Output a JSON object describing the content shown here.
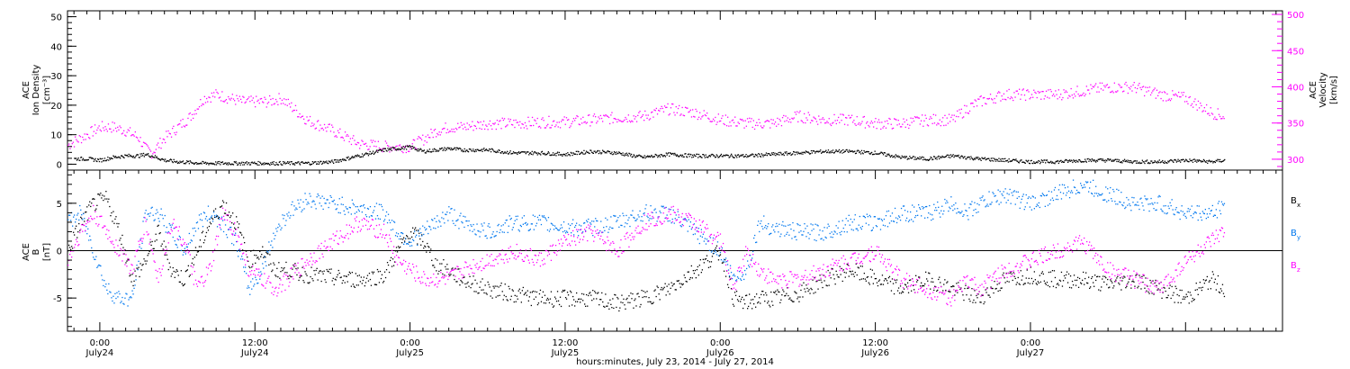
{
  "chart_data": [
    {
      "type": "scatter",
      "panel": "top",
      "ylabel_left": [
        "ACE",
        "Ion Density",
        "[cm⁻³]"
      ],
      "ylabel_right": [
        "ACE",
        "Velocity",
        "[km/s]"
      ],
      "ylim_left": [
        -2,
        52
      ],
      "yticks_left": [
        0,
        10,
        20,
        30,
        40,
        50
      ],
      "ylim_right": [
        285,
        505
      ],
      "yticks_right": [
        300,
        350,
        400,
        450,
        500
      ],
      "x_hours_range": [
        -2.5,
        91.5
      ],
      "series": [
        {
          "axis": "left",
          "color": "#000000",
          "x": [
            -2,
            -1,
            0,
            1,
            2,
            3,
            3.5,
            4,
            5,
            6,
            8,
            10,
            12,
            14,
            16,
            18,
            20,
            22,
            24,
            25,
            26,
            27,
            28,
            30,
            32,
            34,
            36,
            38,
            40,
            42,
            44,
            46,
            48,
            50,
            52,
            54,
            56,
            58,
            60,
            62,
            64,
            66,
            67,
            68,
            70,
            72,
            74,
            76,
            78,
            80,
            82,
            84,
            86,
            87
          ],
          "y": [
            2,
            2,
            1.5,
            2.5,
            3,
            3,
            3.5,
            3,
            1.5,
            1,
            0.5,
            0.5,
            0.5,
            0.5,
            0.5,
            1,
            3,
            5,
            6,
            4.5,
            5,
            5.5,
            5,
            5,
            4,
            4,
            3.5,
            4.5,
            4,
            2.5,
            3.5,
            3,
            3,
            3,
            3.5,
            4,
            4.5,
            4.5,
            4,
            2.5,
            2,
            3,
            2.5,
            2,
            1.5,
            1,
            1,
            1.5,
            1.5,
            1,
            1,
            1.5,
            1,
            1.5
          ]
        },
        {
          "axis": "right",
          "color": "#ff00ff",
          "x": [
            -2.5,
            -1,
            0,
            1,
            2,
            3,
            3.5,
            4,
            5,
            6,
            7,
            8,
            9,
            10,
            11,
            12,
            13,
            14,
            16,
            18,
            20,
            22,
            24,
            25,
            26,
            27,
            28,
            30,
            32,
            34,
            36,
            38,
            40,
            42,
            44,
            46,
            48,
            50,
            52,
            54,
            56,
            58,
            60,
            62,
            64,
            66,
            67,
            68,
            70,
            72,
            74,
            76,
            78,
            80,
            82,
            84,
            86,
            87
          ],
          "y": [
            320,
            335,
            345,
            345,
            340,
            330,
            315,
            310,
            330,
            345,
            360,
            385,
            390,
            385,
            380,
            380,
            380,
            385,
            355,
            340,
            322,
            318,
            318,
            328,
            340,
            345,
            345,
            350,
            350,
            352,
            352,
            355,
            358,
            360,
            370,
            365,
            355,
            350,
            350,
            360,
            355,
            355,
            350,
            350,
            355,
            355,
            370,
            380,
            390,
            390,
            390,
            395,
            400,
            400,
            390,
            385,
            365,
            360
          ]
        }
      ]
    },
    {
      "type": "scatter",
      "panel": "bottom",
      "ylabel_left": [
        "ACE",
        "B",
        "[nT]"
      ],
      "ylim": [
        -8.5,
        8.5
      ],
      "yticks": [
        -5,
        0,
        5
      ],
      "x_hours_range": [
        -2.5,
        91.5
      ],
      "series": [
        {
          "name": "Bx",
          "label_main": "B",
          "label_sub": "x",
          "color": "#000000",
          "x": [
            -2.5,
            -1.5,
            -0.5,
            0.5,
            1.5,
            2.5,
            3.5,
            4.5,
            5.5,
            6.5,
            7.5,
            8.5,
            9.5,
            10.5,
            11.5,
            12.5,
            13.5,
            14.5,
            16,
            18,
            20,
            22,
            23,
            24,
            25,
            26,
            27,
            28,
            30,
            32,
            34,
            36,
            38,
            40,
            42,
            44,
            46,
            48,
            49,
            50,
            51,
            52,
            54,
            56,
            58,
            60,
            62,
            64,
            66,
            67,
            68,
            70,
            72,
            74,
            76,
            78,
            80,
            82,
            84,
            86,
            87
          ],
          "y": [
            0,
            3,
            5,
            5.5,
            2,
            -3,
            -1,
            2,
            -2,
            -3,
            0,
            3,
            5,
            3,
            -1,
            0,
            -2,
            -2,
            -2.5,
            -2.8,
            -3,
            -2.5,
            0,
            2,
            1,
            -1.5,
            -2,
            -3,
            -4,
            -4.5,
            -5,
            -5,
            -5,
            -5.5,
            -5,
            -4,
            -2,
            0,
            -5,
            -5.5,
            -5,
            -5,
            -4.5,
            -3,
            -2,
            -3,
            -4,
            -3,
            -4,
            -4.5,
            -5,
            -3,
            -2.5,
            -3,
            -3,
            -3.5,
            -3,
            -4,
            -5,
            -3,
            -4
          ]
        },
        {
          "name": "By",
          "label_main": "B",
          "label_sub": "y",
          "color": "#0077ee",
          "x": [
            -2.5,
            -1.5,
            -0.5,
            0.5,
            1.5,
            2.5,
            3.5,
            4.5,
            5.5,
            6.5,
            7.5,
            8.5,
            9.5,
            10.5,
            11.5,
            12.5,
            13.5,
            14.5,
            16,
            18,
            20,
            22,
            23,
            24,
            25,
            26,
            27,
            28,
            30,
            32,
            34,
            36,
            38,
            40,
            42,
            44,
            46,
            48,
            49,
            50,
            51,
            52,
            54,
            56,
            58,
            60,
            62,
            64,
            66,
            67,
            68,
            70,
            72,
            74,
            76,
            78,
            80,
            82,
            84,
            86,
            87
          ],
          "y": [
            3,
            4,
            0,
            -4,
            -5,
            -5,
            4,
            4,
            2,
            0,
            3,
            4,
            3,
            1,
            -4,
            -2,
            2,
            4,
            5.5,
            5,
            4.5,
            4,
            2,
            1,
            2,
            3,
            4,
            3,
            2,
            3,
            3,
            2.5,
            2.5,
            3,
            4,
            4,
            2,
            0,
            -3,
            -2,
            3,
            2.5,
            2,
            2,
            3,
            3,
            4,
            4,
            5,
            4,
            5,
            6,
            5,
            6,
            7,
            6,
            5,
            5,
            4,
            4,
            5
          ]
        },
        {
          "name": "Bz",
          "label_main": "B",
          "label_sub": "z",
          "color": "#ff00ff",
          "x": [
            -2.5,
            -1.5,
            -0.5,
            0.5,
            1.5,
            2.5,
            3.5,
            4.5,
            5.5,
            6.5,
            7.5,
            8.5,
            9.5,
            10.5,
            11.5,
            12.5,
            13.5,
            14.5,
            16,
            18,
            20,
            22,
            23,
            24,
            25,
            26,
            27,
            28,
            30,
            32,
            34,
            36,
            38,
            40,
            42,
            44,
            46,
            48,
            49,
            50,
            51,
            52,
            54,
            56,
            58,
            60,
            62,
            64,
            66,
            67,
            68,
            70,
            72,
            74,
            76,
            78,
            80,
            82,
            84,
            86,
            87
          ],
          "y": [
            -1,
            2,
            4,
            2,
            0,
            -2,
            3,
            -3,
            3,
            1,
            -4,
            -2,
            4,
            2,
            -2,
            -3,
            -4,
            -3,
            -1,
            1,
            3,
            2,
            -1,
            -2,
            -3,
            -3,
            -3,
            -2,
            -1,
            0,
            -1,
            1,
            2,
            0,
            3,
            4,
            3,
            1,
            -4,
            0,
            -2,
            -3,
            -3,
            -2,
            -1,
            0,
            -3,
            -4,
            -5,
            -3,
            -4,
            -2,
            -1,
            0,
            1,
            -2,
            -3,
            -4,
            -1,
            1,
            2
          ]
        }
      ]
    }
  ],
  "x_axis": {
    "tick_labels": [
      {
        "time": "0:00",
        "date": "July24",
        "hours": 0
      },
      {
        "time": "12:00",
        "date": "July24",
        "hours": 12
      },
      {
        "time": "0:00",
        "date": "July25",
        "hours": 24
      },
      {
        "time": "12:00",
        "date": "July25",
        "hours": 36
      },
      {
        "time": "0:00",
        "date": "July26",
        "hours": 48
      },
      {
        "time": "12:00",
        "date": "July26",
        "hours": 60
      },
      {
        "time": "0:00",
        "date": "July27",
        "hours": 72
      }
    ],
    "title": "hours:minutes, July 23, 2014 - July 27, 2014"
  }
}
